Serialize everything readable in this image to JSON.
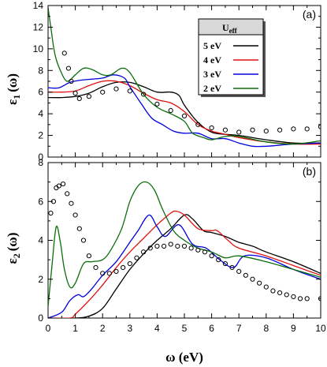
{
  "chart_data": [
    {
      "type": "line",
      "panel_label": "(a)",
      "ylabel_main": "ε",
      "ylabel_sub": "1",
      "ylabel_tail": "(ω)",
      "xlim": [
        0,
        10
      ],
      "ylim": [
        0,
        14
      ],
      "yticks": [
        "0",
        "2",
        "4",
        "6",
        "8",
        "10",
        "12",
        "14"
      ],
      "xticks_shown": false,
      "grid": false,
      "legend": {
        "placement": "top-right",
        "title_main": "U",
        "title_sub": "eff",
        "entries": [
          "5 eV",
          "4 eV",
          "3 eV",
          "2 eV"
        ]
      },
      "series": [
        {
          "name": "5 eV",
          "color": "#000000",
          "x": [
            0,
            0.5,
            1.0,
            1.5,
            2.0,
            2.5,
            3.0,
            3.5,
            4.0,
            4.5,
            4.8,
            5.0,
            5.5,
            6.0,
            6.5,
            7.0,
            8.0,
            9.0,
            10.0
          ],
          "y": [
            5.5,
            5.5,
            5.6,
            5.9,
            6.5,
            6.9,
            6.9,
            6.5,
            6.0,
            6.0,
            5.7,
            4.8,
            3.2,
            2.3,
            2.1,
            2.0,
            1.6,
            1.3,
            1.3
          ]
        },
        {
          "name": "4 eV",
          "color": "#e01010",
          "x": [
            0,
            0.5,
            1.0,
            1.5,
            2.0,
            2.5,
            3.0,
            3.5,
            4.0,
            4.5,
            5.0,
            5.5,
            6.0,
            6.5,
            7.0,
            8.0,
            9.0,
            10.0
          ],
          "y": [
            6.0,
            6.0,
            6.1,
            6.6,
            7.0,
            7.0,
            6.6,
            5.9,
            5.3,
            5.0,
            4.2,
            3.0,
            2.4,
            2.1,
            1.8,
            1.4,
            1.2,
            1.2
          ]
        },
        {
          "name": "3 eV",
          "color": "#0000dd",
          "x": [
            0,
            0.4,
            0.8,
            1.2,
            1.6,
            2.0,
            2.4,
            2.8,
            3.0,
            3.4,
            3.8,
            4.2,
            4.6,
            5.0,
            5.5,
            6.0,
            6.5,
            7.0,
            7.5,
            8.0,
            9.0,
            10.0
          ],
          "y": [
            6.4,
            6.4,
            6.9,
            7.1,
            7.2,
            7.3,
            7.6,
            7.3,
            6.5,
            5.0,
            3.6,
            3.0,
            2.4,
            2.2,
            2.2,
            1.7,
            1.7,
            1.3,
            1.0,
            1.0,
            1.2,
            1.3
          ]
        },
        {
          "name": "2 eV",
          "color": "#0a6e0a",
          "x": [
            0,
            0.1,
            0.25,
            0.45,
            0.7,
            1.0,
            1.3,
            1.6,
            2.0,
            2.3,
            2.7,
            3.0,
            3.5,
            4.0,
            4.5,
            5.0,
            5.3,
            5.7,
            6.0,
            6.5,
            7.0,
            8.0,
            9.0,
            10.0
          ],
          "y": [
            13.8,
            12.0,
            9.5,
            8.0,
            7.0,
            7.6,
            8.2,
            8.1,
            7.6,
            7.6,
            8.2,
            7.8,
            5.8,
            4.6,
            4.0,
            3.3,
            2.2,
            1.8,
            1.6,
            1.9,
            1.9,
            1.4,
            1.2,
            1.5
          ]
        },
        {
          "name": "",
          "color": "#000000",
          "markers": "open-circle",
          "x": [
            0.6,
            0.75,
            0.85,
            1.0,
            1.15,
            1.5,
            2.0,
            2.5,
            3.0,
            3.5,
            4.0,
            4.5,
            5.0,
            5.5,
            6.0,
            6.5,
            7.0,
            7.5,
            8.0,
            8.5,
            9.0,
            9.5,
            10.0
          ],
          "y": [
            9.6,
            8.2,
            7.0,
            5.9,
            5.4,
            5.6,
            6.0,
            6.3,
            6.1,
            5.8,
            4.9,
            4.3,
            3.8,
            3.0,
            2.7,
            2.5,
            2.3,
            2.5,
            2.4,
            2.5,
            2.6,
            2.6,
            2.8
          ]
        }
      ]
    },
    {
      "type": "line",
      "panel_label": "(b)",
      "ylabel_main": "ε",
      "ylabel_sub": "2",
      "ylabel_tail": "(ω)",
      "xlabel": "ω (eV)",
      "xlim": [
        0,
        10
      ],
      "ylim": [
        0,
        8
      ],
      "yticks": [
        "0",
        "2",
        "4",
        "6",
        "8"
      ],
      "xticks": [
        "0",
        "1",
        "2",
        "3",
        "4",
        "5",
        "6",
        "7",
        "8",
        "9",
        "10"
      ],
      "grid": false,
      "series": [
        {
          "name": "5 eV",
          "color": "#000000",
          "x": [
            0,
            1.0,
            1.5,
            2.0,
            2.5,
            3.0,
            3.5,
            4.0,
            4.5,
            5.0,
            5.3,
            5.7,
            6.0,
            6.5,
            7.0,
            7.5,
            8.0,
            9.0,
            10.0
          ],
          "y": [
            0,
            0,
            0.1,
            0.5,
            1.5,
            2.5,
            3.3,
            4.0,
            4.6,
            5.3,
            5.1,
            4.5,
            4.4,
            4.2,
            3.9,
            3.7,
            3.4,
            2.9,
            2.3
          ]
        },
        {
          "name": "4 eV",
          "color": "#e01010",
          "x": [
            0,
            0.8,
            1.0,
            1.5,
            2.0,
            2.5,
            3.0,
            3.5,
            4.0,
            4.5,
            4.7,
            5.0,
            5.5,
            6.0,
            6.2,
            6.6,
            7.0,
            8.0,
            9.0,
            10.0
          ],
          "y": [
            0,
            0,
            0.2,
            0.9,
            1.7,
            2.6,
            3.4,
            4.1,
            4.8,
            5.4,
            5.5,
            5.3,
            4.6,
            4.5,
            4.5,
            4.0,
            3.6,
            3.2,
            2.7,
            2.2
          ]
        },
        {
          "name": "3 eV",
          "color": "#0000dd",
          "x": [
            0,
            0.5,
            0.8,
            1.1,
            1.3,
            1.6,
            2.0,
            2.5,
            3.0,
            3.3,
            3.7,
            4.0,
            4.3,
            4.8,
            5.3,
            5.8,
            6.3,
            6.8,
            7.2,
            8.0,
            9.0,
            10.0
          ],
          "y": [
            0,
            0.3,
            0.9,
            1.2,
            1.1,
            1.5,
            2.2,
            2.9,
            3.9,
            4.5,
            5.3,
            4.7,
            4.2,
            4.8,
            3.8,
            3.6,
            3.0,
            2.6,
            3.2,
            3.1,
            2.5,
            2.0
          ]
        },
        {
          "name": "2 eV",
          "color": "#0a6e0a",
          "x": [
            0,
            0.15,
            0.3,
            0.45,
            0.6,
            0.8,
            1.0,
            1.3,
            1.6,
            2.0,
            2.3,
            2.7,
            3.0,
            3.3,
            3.6,
            3.9,
            4.2,
            4.6,
            5.0,
            5.5,
            6.0,
            6.5,
            7.0,
            8.0,
            9.0,
            10.0
          ],
          "y": [
            0.6,
            2.8,
            4.7,
            3.9,
            2.5,
            1.6,
            1.8,
            2.8,
            2.9,
            3.0,
            3.5,
            4.6,
            6.0,
            6.8,
            7.0,
            6.6,
            5.6,
            4.5,
            4.0,
            3.6,
            3.4,
            3.1,
            3.2,
            2.9,
            2.5,
            2.1
          ]
        },
        {
          "name": "",
          "color": "#000000",
          "markers": "open-circle",
          "x": [
            0.1,
            0.2,
            0.3,
            0.4,
            0.55,
            0.7,
            0.85,
            1.0,
            1.15,
            1.3,
            1.5,
            1.75,
            2.0,
            2.25,
            2.5,
            2.75,
            3.0,
            3.25,
            3.5,
            3.75,
            4.0,
            4.25,
            4.5,
            4.75,
            5.0,
            5.25,
            5.5,
            5.75,
            6.0,
            6.25,
            6.5,
            6.75,
            7.0,
            7.25,
            7.5,
            7.75,
            8.0,
            8.25,
            8.5,
            8.75,
            9.0,
            9.25,
            9.5,
            10.0
          ],
          "y": [
            5.4,
            6.0,
            6.7,
            6.8,
            6.9,
            6.4,
            5.9,
            5.3,
            4.6,
            4.0,
            3.2,
            2.6,
            2.3,
            2.3,
            2.4,
            2.6,
            2.8,
            3.1,
            3.4,
            3.6,
            3.7,
            3.7,
            3.8,
            3.7,
            3.7,
            3.6,
            3.5,
            3.4,
            3.2,
            3.0,
            2.8,
            2.6,
            2.4,
            2.2,
            2.0,
            1.8,
            1.6,
            1.4,
            1.3,
            1.2,
            1.1,
            1.0,
            1.0,
            1.0
          ]
        }
      ]
    }
  ]
}
